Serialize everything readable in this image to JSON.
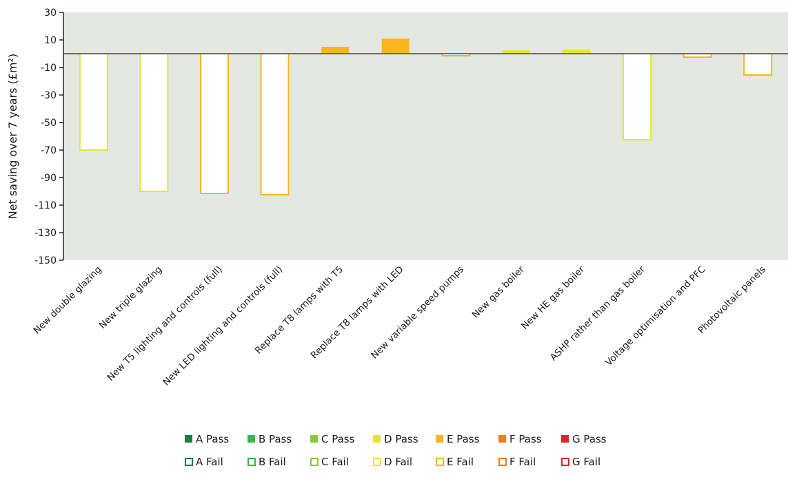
{
  "chart_data": {
    "type": "bar",
    "ylabel": "Net saving over 7 years  (£m²)",
    "ylim": [
      -150,
      30
    ],
    "yticks": [
      30,
      10,
      -10,
      -30,
      -50,
      -70,
      -90,
      -110,
      -130,
      -150
    ],
    "grid": false,
    "legend_position": "bottom",
    "categories": [
      "New double glazing",
      "New triple glazing",
      "New T5 lighting and controls (full)",
      "New LED lighting and controls (full)",
      "Replace T8 lamps with T5",
      "Replace T8 lamps with LED",
      "New variable speed pumps",
      "New gas boiler",
      "New HE gas boiler",
      "ASHP rather than gas boiler",
      "Voltage optimisation and PFC",
      "Photovoltaic panels"
    ],
    "values": [
      -70,
      -100,
      -101.5,
      -102.5,
      5,
      11,
      -1.5,
      2.5,
      3,
      -62.5,
      -2.5,
      -15.5
    ],
    "bar_styles": [
      "D Fail",
      "D Fail",
      "E Fail",
      "E Fail",
      "E Pass",
      "E Pass",
      "E Fail",
      "D Pass",
      "D Pass",
      "D Fail",
      "E Fail",
      "E Fail"
    ],
    "legend": {
      "pass": [
        {
          "label": "A Pass",
          "color": "#1a7f3c"
        },
        {
          "label": "B Pass",
          "color": "#3ab54a"
        },
        {
          "label": "C Pass",
          "color": "#8dc63f"
        },
        {
          "label": "D Pass",
          "color": "#e6e62e"
        },
        {
          "label": "E Pass",
          "color": "#fbb61b"
        },
        {
          "label": "F Pass",
          "color": "#f37a20"
        },
        {
          "label": "G Pass",
          "color": "#e3222a"
        }
      ],
      "fail": [
        {
          "label": "A Fail",
          "color": "#1a7f3c"
        },
        {
          "label": "B Fail",
          "color": "#3ab54a"
        },
        {
          "label": "C Fail",
          "color": "#8dc63f"
        },
        {
          "label": "D Fail",
          "color": "#e6e62e"
        },
        {
          "label": "E Fail",
          "color": "#fbb61b"
        },
        {
          "label": "F Fail",
          "color": "#f37a20"
        },
        {
          "label": "G Fail",
          "color": "#e3222a"
        }
      ]
    },
    "colors": {
      "plot_background": "#e3e8e3",
      "zero_line": "#2e8b57",
      "axis": "#222222"
    }
  }
}
